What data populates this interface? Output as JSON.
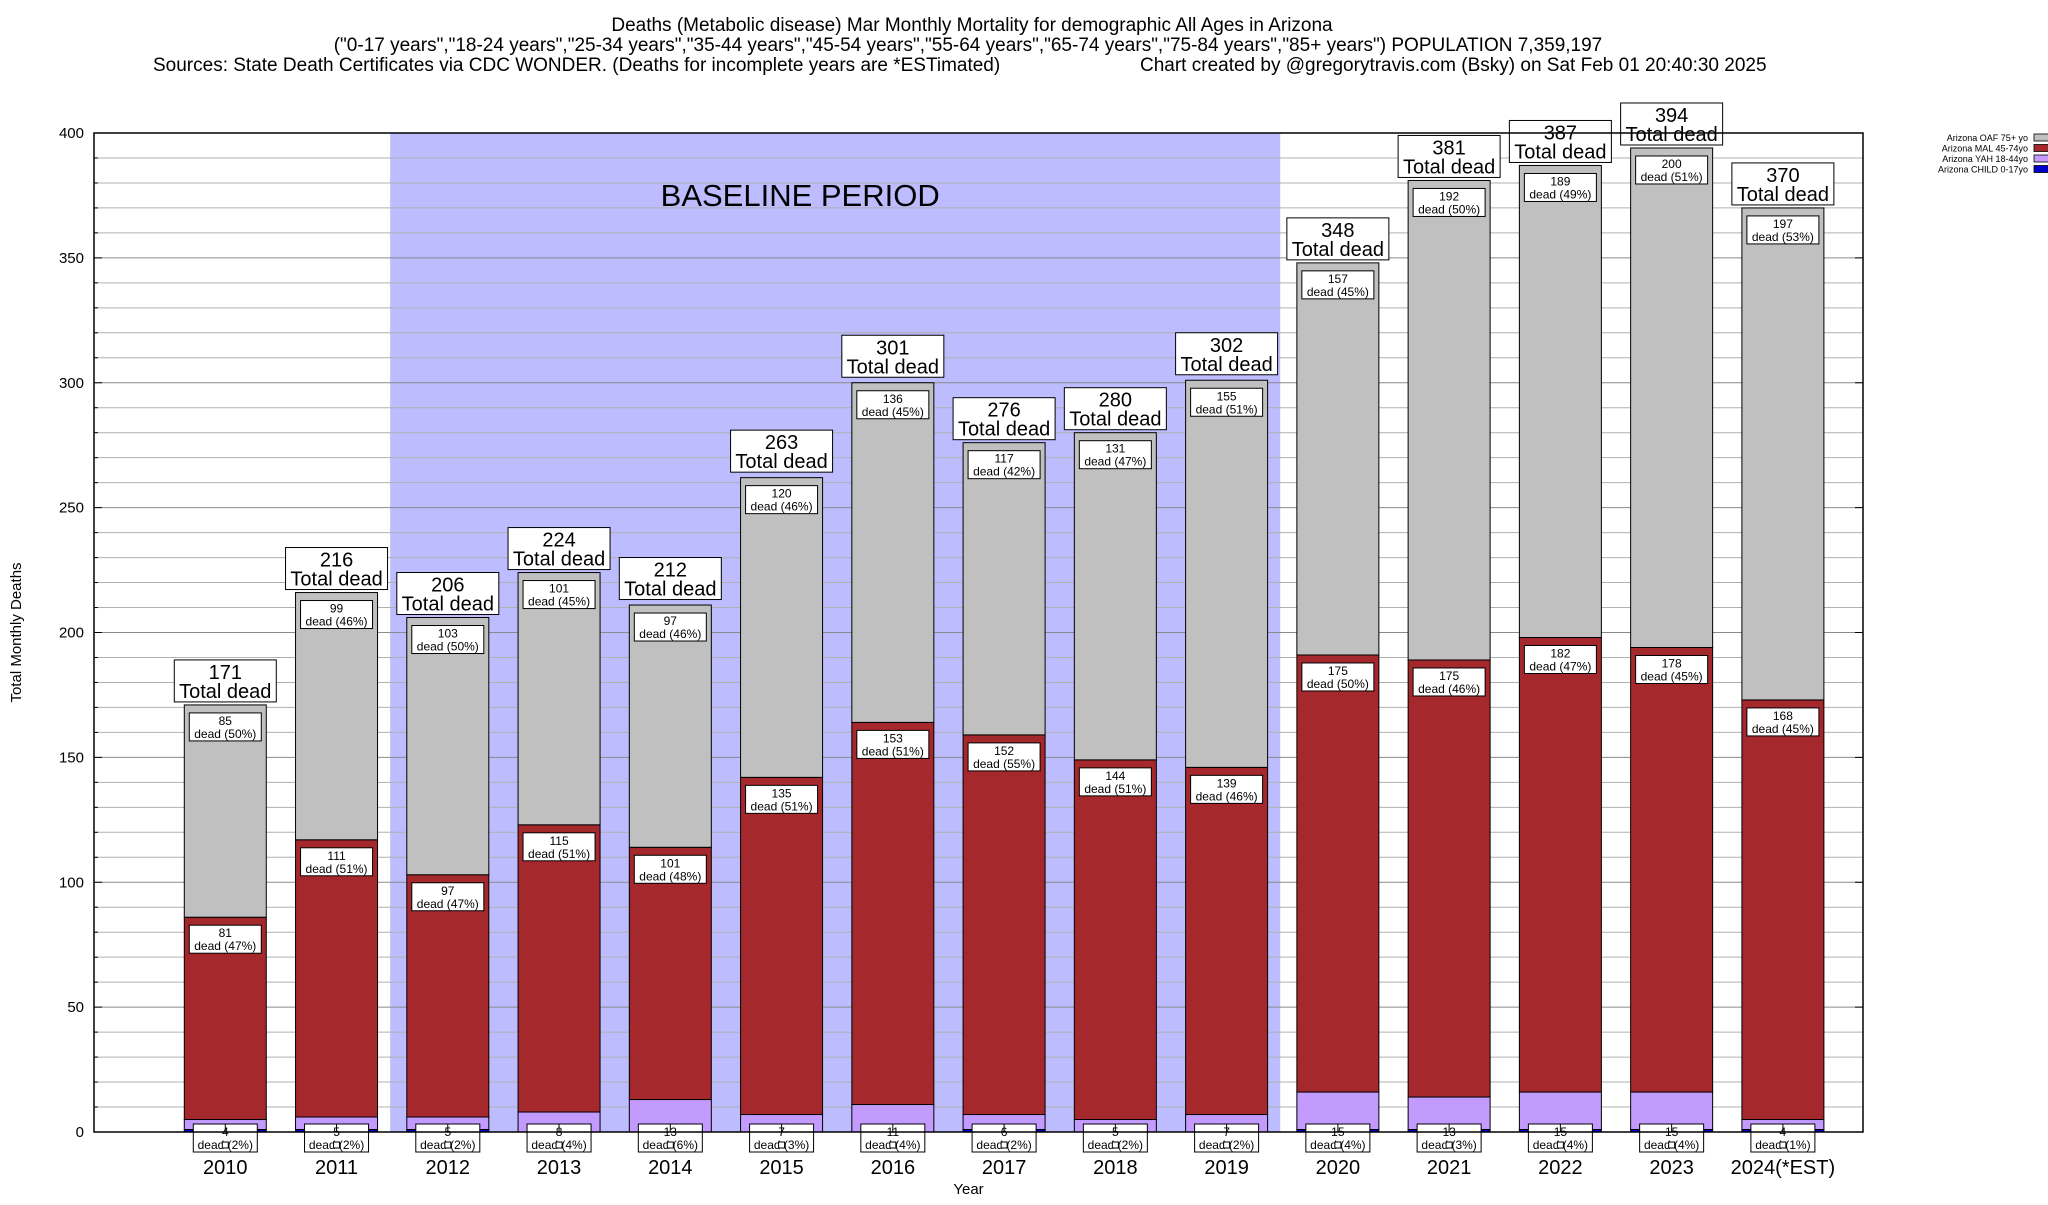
{
  "chart_data": {
    "type": "bar",
    "stacked": true,
    "title_lines": [
      "Deaths (Metabolic disease) Mar Monthly Mortality for demographic All Ages in Arizona",
      "(\"0-17 years\",\"18-24 years\",\"25-34 years\",\"35-44 years\",\"45-54 years\",\"55-64 years\",\"65-74 years\",\"75-84 years\",\"85+ years\") POPULATION 7,359,197",
      "Sources: State Death Certificates via CDC WONDER. (Deaths for incomplete years are *ESTimated)",
      "Chart created by @gregorytravis.com (Bsky) on Sat Feb 01 20:40:30 2025"
    ],
    "xlabel": "Year",
    "ylabel": "Total Monthly Deaths",
    "ylim": [
      0,
      400
    ],
    "yticks": [
      0,
      50,
      100,
      150,
      200,
      250,
      300,
      350,
      400
    ],
    "grid": true,
    "legend_position": "top-right",
    "baseline_label": "BASELINE PERIOD",
    "baseline_range": [
      "2012",
      "2019"
    ],
    "total_suffix": "Total dead",
    "dead_prefix": "dead",
    "categories": [
      "2010",
      "2011",
      "2012",
      "2013",
      "2014",
      "2015",
      "2016",
      "2017",
      "2018",
      "2019",
      "2020",
      "2021",
      "2022",
      "2023",
      "2024(*EST)"
    ],
    "series": [
      {
        "name": "Arizona CHILD 0-17yo",
        "color": "#0000cc",
        "values": [
          1,
          1,
          1,
          0,
          0,
          0,
          0,
          1,
          0,
          0,
          1,
          1,
          1,
          1,
          1
        ],
        "labels": [
          "",
          "",
          "",
          "",
          "",
          "",
          "",
          "",
          "",
          "",
          "",
          "",
          "",
          "",
          ""
        ]
      },
      {
        "name": "Arizona YAH 18-44yo",
        "color": "#c39bff",
        "values": [
          4,
          5,
          5,
          8,
          13,
          7,
          11,
          6,
          5,
          7,
          15,
          13,
          15,
          15,
          4
        ],
        "labels": [
          "4",
          "5",
          "5",
          "8",
          "13",
          "7",
          "11",
          "6",
          "5",
          "7",
          "15",
          "13",
          "15",
          "15",
          "4"
        ],
        "pct": [
          "(2%)",
          "(2%)",
          "(2%)",
          "(4%)",
          "(6%)",
          "(3%)",
          "(4%)",
          "(2%)",
          "(2%)",
          "(2%)",
          "(4%)",
          "(3%)",
          "(4%)",
          "(4%)",
          "(1%)"
        ]
      },
      {
        "name": "Arizona MAL 45-74yo",
        "color": "#a4282c",
        "values": [
          81,
          111,
          97,
          115,
          101,
          135,
          153,
          152,
          144,
          139,
          175,
          175,
          182,
          178,
          168
        ],
        "labels": [
          "81",
          "111",
          "97",
          "115",
          "101",
          "135",
          "153",
          "152",
          "144",
          "139",
          "175",
          "175",
          "182",
          "178",
          "168"
        ],
        "pct": [
          "(47%)",
          "(51%)",
          "(47%)",
          "(51%)",
          "(48%)",
          "(51%)",
          "(51%)",
          "(55%)",
          "(51%)",
          "(46%)",
          "(50%)",
          "(46%)",
          "(47%)",
          "(45%)",
          "(45%)"
        ]
      },
      {
        "name": "Arizona OAF 75+ yo",
        "color": "#c0c0c0",
        "values": [
          85,
          99,
          103,
          101,
          97,
          120,
          136,
          117,
          131,
          155,
          157,
          192,
          189,
          200,
          197
        ],
        "labels": [
          "85",
          "99",
          "103",
          "101",
          "97",
          "120",
          "136",
          "117",
          "131",
          "155",
          "157",
          "192",
          "189",
          "200",
          "197"
        ],
        "pct": [
          "(50%)",
          "(46%)",
          "(50%)",
          "(45%)",
          "(46%)",
          "(46%)",
          "(45%)",
          "(42%)",
          "(47%)",
          "(51%)",
          "(45%)",
          "(50%)",
          "(49%)",
          "(51%)",
          "(53%)"
        ]
      }
    ],
    "totals": [
      171,
      216,
      206,
      224,
      212,
      263,
      301,
      276,
      280,
      302,
      348,
      381,
      387,
      394,
      370
    ]
  }
}
